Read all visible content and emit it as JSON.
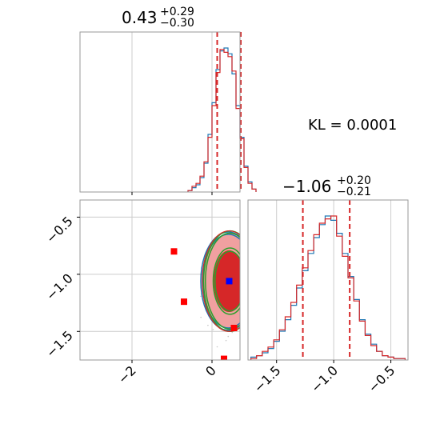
{
  "chart_data": {
    "type": "corner",
    "kl_label": "KL = 0.0001",
    "colors": {
      "hist_a": "#1f77b4",
      "hist_b": "#d62728",
      "quantile_line": "#d62728",
      "contour_red_fill": "#d62728",
      "contour_red_light": "#f0a0a0",
      "contour_green": "#2ca02c",
      "contour_blue": "#1f77b4",
      "truth_marker": "#0000ff",
      "other_markers": "#ff0000"
    },
    "param1": {
      "title_value": "0.43",
      "title_plus": "+0.29",
      "title_minus": "−0.30",
      "median": 0.43,
      "q_low": 0.13,
      "q_high": 0.72,
      "xlim": [
        -3.3,
        0.7
      ],
      "histogram_centers": [
        -0.55,
        -0.45,
        -0.35,
        -0.25,
        -0.15,
        -0.05,
        0.05,
        0.15,
        0.25,
        0.35,
        0.45,
        0.55,
        0.65,
        0.75,
        0.85,
        0.95,
        1.05
      ],
      "hist_a": [
        1,
        3,
        5,
        10,
        20,
        40,
        62,
        85,
        98,
        100,
        96,
        82,
        60,
        38,
        18,
        7,
        2
      ],
      "hist_b": [
        1,
        4,
        6,
        11,
        21,
        38,
        60,
        83,
        99,
        97,
        94,
        84,
        58,
        37,
        17,
        6,
        2
      ]
    },
    "param2": {
      "title_value": "−1.06",
      "title_plus": "+0.20",
      "title_minus": "−0.21",
      "median": -1.06,
      "q_low": -1.27,
      "q_high": -0.86,
      "xlim": [
        -1.75,
        -0.35
      ],
      "tick_values": [
        -1.5,
        -1.0,
        -0.5
      ],
      "tick_labels": [
        "−1.5",
        "−1.0",
        "−0.5"
      ],
      "histogram_centers": [
        -1.7,
        -1.65,
        -1.6,
        -1.55,
        -1.5,
        -1.45,
        -1.4,
        -1.35,
        -1.3,
        -1.25,
        -1.2,
        -1.15,
        -1.1,
        -1.05,
        -1.0,
        -0.95,
        -0.9,
        -0.85,
        -0.8,
        -0.75,
        -0.7,
        -0.65,
        -0.6,
        -0.55,
        -0.5,
        -0.45,
        -0.4
      ],
      "hist_a": [
        2,
        3,
        5,
        8,
        13,
        20,
        28,
        38,
        50,
        62,
        74,
        85,
        94,
        100,
        97,
        88,
        74,
        58,
        42,
        28,
        18,
        11,
        6,
        3,
        2,
        1,
        1
      ],
      "hist_b": [
        1,
        3,
        6,
        9,
        14,
        21,
        30,
        40,
        52,
        64,
        76,
        87,
        95,
        98,
        100,
        86,
        72,
        57,
        41,
        27,
        17,
        10,
        6,
        3,
        2,
        1,
        1
      ]
    },
    "joint": {
      "xlim": [
        -3.3,
        0.7
      ],
      "ylim": [
        -1.75,
        -0.35
      ],
      "x_tick_values": [
        -2,
        0
      ],
      "x_tick_labels": [
        "−2",
        "0"
      ],
      "y_tick_values": [
        -0.5,
        -1.0,
        -1.5
      ],
      "y_tick_labels": [
        "−0.5",
        "−1.0",
        "−1.5"
      ],
      "truth_marker": {
        "x": 0.43,
        "y": -1.06
      },
      "other_markers": [
        {
          "x": -0.95,
          "y": -0.8
        },
        {
          "x": -0.7,
          "y": -1.24
        },
        {
          "x": 0.55,
          "y": -1.47
        },
        {
          "x": 0.3,
          "y": -1.74
        }
      ],
      "contour_center": {
        "x": 0.43,
        "y": -1.06
      },
      "contour_sigmas": {
        "x": 0.3,
        "y": 0.2
      }
    },
    "grid": true
  }
}
